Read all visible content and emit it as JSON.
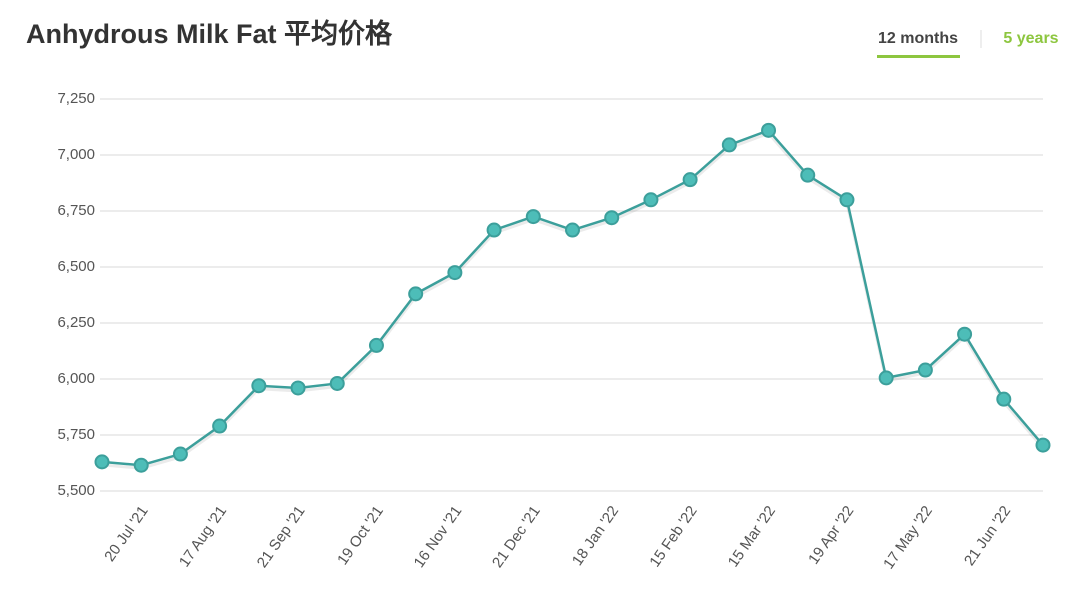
{
  "chart_data": {
    "type": "line",
    "title": "Anhydrous Milk Fat 平均价格",
    "toggles": [
      "12 months",
      "5 years"
    ],
    "categories": [
      null,
      "20 Jul '21",
      null,
      "17 Aug '21",
      null,
      "21 Sep '21",
      null,
      "19 Oct '21",
      null,
      "16 Nov '21",
      null,
      "21 Dec '21",
      null,
      "18 Jan '22",
      null,
      "15 Feb '22",
      null,
      "15 Mar '22",
      null,
      "19 Apr '22",
      null,
      "17 May '22",
      null,
      "21 Jun '22",
      null
    ],
    "values": [
      5630,
      5615,
      5665,
      5790,
      5970,
      5960,
      5980,
      6150,
      6380,
      6475,
      6665,
      6725,
      6665,
      6720,
      6800,
      6890,
      7045,
      7110,
      6910,
      6800,
      6005,
      6040,
      6200,
      5910,
      5705
    ],
    "color": "#3c9f9b",
    "marker_color": "#4dbdb8",
    "ylim": [
      5500,
      7250
    ],
    "yticks": [
      {
        "value": 5500,
        "label": "5,500"
      },
      {
        "value": 5750,
        "label": "5,750"
      },
      {
        "value": 6000,
        "label": "6,000"
      },
      {
        "value": 6250,
        "label": "6,250"
      },
      {
        "value": 6500,
        "label": "6,500"
      },
      {
        "value": 6750,
        "label": "6,750"
      },
      {
        "value": 7000,
        "label": "7,000"
      },
      {
        "value": 7250,
        "label": "7,250"
      }
    ],
    "grid": true
  }
}
